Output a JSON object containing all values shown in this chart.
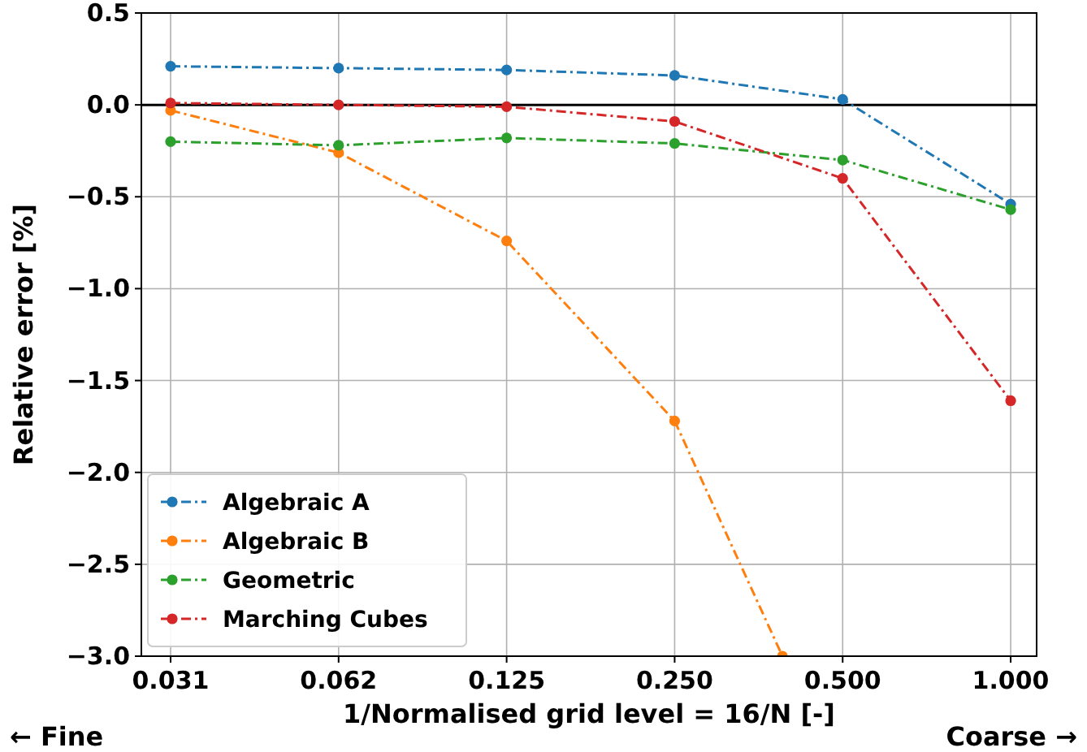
{
  "chart_data": {
    "type": "line",
    "xlabel": "1/Normalised grid level = 16/N [-]",
    "ylabel": "Relative error [%]",
    "x": [
      0.03125,
      0.0625,
      0.125,
      0.25,
      0.5,
      1.0
    ],
    "log": "x",
    "xlim": [
      0.0277,
      1.113
    ],
    "ylim": [
      -3.0,
      0.5
    ],
    "xticks": [
      {
        "value": 0.03125,
        "label": "0.031"
      },
      {
        "value": 0.0625,
        "label": "0.062"
      },
      0.125,
      {
        "value": 0.25,
        "label": "0.250"
      },
      {
        "value": 0.5,
        "label": "0.500"
      },
      {
        "value": 1.0,
        "label": "1.000"
      }
    ],
    "yticks": [
      {
        "value": -3.0,
        "label": "−3.0"
      },
      {
        "value": -2.5,
        "label": "−2.5"
      },
      {
        "value": -2.0,
        "label": "−2.0"
      },
      {
        "value": -1.5,
        "label": "−1.5"
      },
      {
        "value": -1.0,
        "label": "−1.0"
      },
      {
        "value": -0.5,
        "label": "−0.5"
      },
      {
        "value": 0,
        "label": "0.0"
      },
      0.5
    ],
    "series": [
      {
        "name": "Algebraic A",
        "color": "#1f77b4",
        "values": [
          0.21,
          0.2,
          0.19,
          0.16,
          0.03,
          -0.54
        ]
      },
      {
        "name": "Algebraic B",
        "color": "#ff7f0e",
        "x": [
          0.03125,
          0.0625,
          0.125,
          0.25,
          0.39
        ],
        "values": [
          -0.03,
          -0.26,
          -0.74,
          -1.72,
          -3.0
        ]
      },
      {
        "name": "Geometric",
        "color": "#2ca02c",
        "values": [
          -0.2,
          -0.22,
          -0.18,
          -0.21,
          -0.3,
          -0.57
        ]
      },
      {
        "name": "Marching Cubes",
        "color": "#d62728",
        "values": [
          0.01,
          0.0,
          -0.01,
          -0.09,
          -0.4,
          -1.61
        ]
      }
    ],
    "ref_lines": [
      {
        "axis": "y",
        "value": 0,
        "color": "#000000",
        "line_style": "solid"
      }
    ],
    "annotations": [
      "← Fine",
      "Coarse →"
    ],
    "grid": true,
    "legend": "bottom left",
    "marker": "circle",
    "line_style": "dashed"
  }
}
